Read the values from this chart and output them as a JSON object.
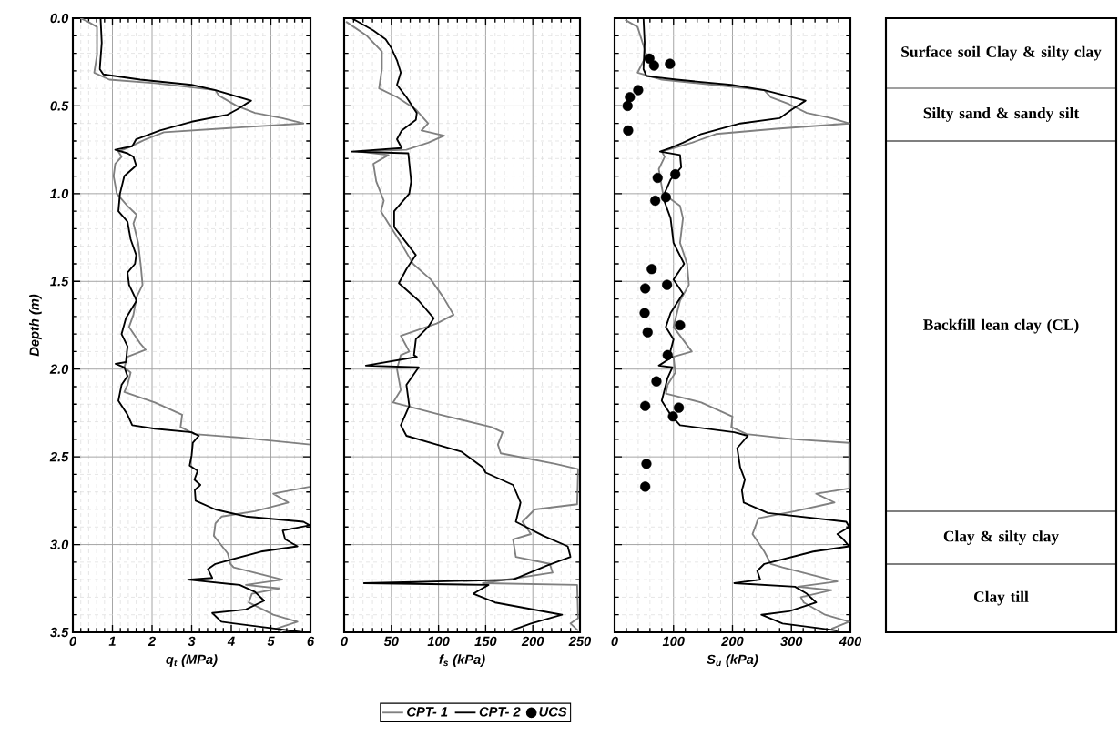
{
  "chart_data": [
    {
      "type": "line",
      "xlabel": "q$_{t}$ (MPa)",
      "ylabel": "Depth (m)",
      "xlim": [
        0,
        6
      ],
      "ylim": [
        3.5,
        0
      ],
      "xticks": [
        0,
        1,
        2,
        3,
        4,
        5,
        6
      ],
      "yticks": [
        {
          "value": 0,
          "label": "0.0"
        },
        {
          "value": 0.5,
          "label": "0.5"
        },
        {
          "value": 1,
          "label": "1.0"
        },
        {
          "value": 1.5,
          "label": "1.5"
        },
        {
          "value": 2,
          "label": "2.0"
        },
        {
          "value": 2.5,
          "label": "2.5"
        },
        {
          "value": 3,
          "label": "3.0"
        },
        {
          "value": 3.5,
          "label": "3.5"
        }
      ],
      "grid": true,
      "series": [
        {
          "color": "#808080",
          "x": [
            0.19,
            0.38,
            0.61,
            0.61,
            0.54,
            0.92,
            2.07,
            3.22,
            3.6,
            3.68,
            3.91,
            4.14,
            4.6,
            5.29,
            5.82,
            4.37,
            2.3,
            1.84,
            1.38,
            1.15,
            1.23,
            1.07,
            1.03,
            1.11,
            1.38,
            1.61,
            1.53,
            1.65,
            1.72,
            1.76,
            1.61,
            1.53,
            1.42,
            1.69,
            1.84,
            1.38,
            1.3,
            1.46,
            1.38,
            1.3,
            2.07,
            2.76,
            2.72,
            3.07,
            4.21,
            6,
            6,
            5.06,
            5.44,
            4.6,
            3.76,
            3.6,
            3.56,
            3.91,
            3.98,
            4.06,
            5.29,
            4.37,
            5.21,
            4.52,
            4.44,
            5.06,
            5.67,
            5.13,
            5.29
          ],
          "values": [
            0,
            0.02,
            0.05,
            0.21,
            0.31,
            0.35,
            0.37,
            0.4,
            0.41,
            0.44,
            0.47,
            0.5,
            0.54,
            0.57,
            0.6,
            0.62,
            0.65,
            0.69,
            0.74,
            0.76,
            0.79,
            0.83,
            0.9,
            1.0,
            1.07,
            1.12,
            1.17,
            1.28,
            1.42,
            1.52,
            1.59,
            1.69,
            1.76,
            1.85,
            1.89,
            1.93,
            1.99,
            2.02,
            2.09,
            2.13,
            2.19,
            2.26,
            2.33,
            2.37,
            2.39,
            2.43,
            2.67,
            2.71,
            2.76,
            2.81,
            2.84,
            2.88,
            2.95,
            3.05,
            3.11,
            3.13,
            3.2,
            3.23,
            3.25,
            3.28,
            3.33,
            3.4,
            3.44,
            3.48,
            3.5
          ]
        },
        {
          "color": "#000000",
          "x": [
            0.7,
            0.73,
            0.68,
            0.77,
            1.7,
            3.0,
            3.6,
            4.5,
            4.15,
            3.9,
            3.0,
            2.2,
            1.6,
            1.5,
            1.07,
            1.38,
            1.53,
            1.6,
            1.3,
            1.19,
            1.15,
            1.38,
            1.46,
            1.6,
            1.57,
            1.38,
            1.42,
            1.61,
            1.34,
            1.23,
            1.38,
            1.34,
            1.08,
            1.3,
            1.38,
            1.23,
            1.15,
            1.38,
            1.5,
            2.07,
            3.0,
            3.18,
            3.03,
            3.0,
            2.95,
            3.15,
            3.07,
            3.22,
            3.08,
            3.1,
            3.6,
            4.37,
            5.82,
            5.98,
            5.3,
            5.36,
            5.67,
            4.75,
            3.6,
            3.41,
            3.52,
            2.91,
            4.21,
            4.6,
            4.83,
            4.37,
            3.52,
            3.75,
            5.13,
            5.82
          ],
          "values": [
            0,
            0.14,
            0.29,
            0.32,
            0.35,
            0.38,
            0.41,
            0.47,
            0.52,
            0.55,
            0.59,
            0.64,
            0.69,
            0.73,
            0.75,
            0.77,
            0.79,
            0.84,
            0.9,
            1.0,
            1.1,
            1.16,
            1.26,
            1.35,
            1.4,
            1.45,
            1.52,
            1.61,
            1.71,
            1.8,
            1.87,
            1.96,
            1.97,
            1.99,
            2.04,
            2.09,
            2.18,
            2.26,
            2.32,
            2.34,
            2.36,
            2.38,
            2.42,
            2.49,
            2.55,
            2.58,
            2.63,
            2.66,
            2.69,
            2.75,
            2.8,
            2.84,
            2.87,
            2.89,
            2.92,
            2.97,
            3.01,
            3.04,
            3.11,
            3.14,
            3.19,
            3.2,
            3.23,
            3.27,
            3.32,
            3.37,
            3.39,
            3.44,
            3.48,
            3.5
          ]
        }
      ]
    },
    {
      "type": "line",
      "xlabel": "f$_{s}$ (kPa)",
      "xlim": [
        0,
        250
      ],
      "ylim": [
        3.5,
        0
      ],
      "xticks": [
        0,
        50,
        100,
        150,
        200,
        250
      ],
      "yticks": [
        0,
        0.5,
        1,
        1.5,
        2,
        2.5,
        3,
        3.5
      ],
      "tick_labels": "x",
      "grid": true,
      "series": [
        {
          "color": "#808080",
          "x": [
            2,
            24,
            40,
            40,
            37,
            56,
            76,
            89,
            82,
            106,
            89,
            66,
            15,
            47,
            31,
            34,
            42,
            39,
            47,
            60,
            73,
            92,
            105,
            116,
            98,
            60,
            69,
            60,
            56,
            60,
            52,
            102,
            156,
            168,
            163,
            166,
            224,
            248,
            247,
            202,
            189,
            198,
            179,
            182,
            218,
            221,
            147,
            247,
            248,
            240,
            248
          ],
          "values": [
            0.02,
            0.1,
            0.19,
            0.29,
            0.4,
            0.45,
            0.52,
            0.6,
            0.64,
            0.67,
            0.71,
            0.75,
            0.76,
            0.78,
            0.83,
            0.93,
            1.04,
            1.1,
            1.17,
            1.28,
            1.4,
            1.49,
            1.59,
            1.69,
            1.74,
            1.81,
            1.9,
            1.92,
            2.0,
            2.12,
            2.19,
            2.26,
            2.33,
            2.36,
            2.43,
            2.48,
            2.54,
            2.57,
            2.77,
            2.8,
            2.87,
            2.94,
            2.97,
            3.07,
            3.11,
            3.16,
            3.22,
            3.23,
            3.42,
            3.45,
            3.49
          ]
        },
        {
          "color": "#000000",
          "x": [
            8,
            31,
            44,
            50,
            56,
            60,
            56,
            66,
            77,
            76,
            61,
            56,
            61,
            8,
            68,
            71,
            69,
            53,
            53,
            66,
            76,
            66,
            58,
            79,
            95,
            89,
            76,
            74,
            77,
            23,
            79,
            66,
            69,
            60,
            66,
            98,
            124,
            147,
            150,
            179,
            187,
            182,
            211,
            237,
            240,
            215,
            179,
            21,
            153,
            137,
            160,
            231,
            198,
            177
          ],
          "values": [
            0,
            0.07,
            0.12,
            0.17,
            0.24,
            0.31,
            0.38,
            0.45,
            0.54,
            0.58,
            0.64,
            0.69,
            0.74,
            0.76,
            0.77,
            0.93,
            1.0,
            1.1,
            1.19,
            1.28,
            1.35,
            1.43,
            1.51,
            1.61,
            1.71,
            1.76,
            1.83,
            1.92,
            1.93,
            1.98,
            1.99,
            2.09,
            2.21,
            2.32,
            2.38,
            2.43,
            2.47,
            2.56,
            2.59,
            2.66,
            2.76,
            2.87,
            2.95,
            3.01,
            3.07,
            3.12,
            3.2,
            3.22,
            3.23,
            3.28,
            3.33,
            3.4,
            3.45,
            3.49
          ]
        }
      ]
    },
    {
      "type": "line",
      "xlabel": "S$_{u}$ (kPa)",
      "xlim": [
        0,
        400
      ],
      "ylim": [
        3.5,
        0
      ],
      "xticks": [
        0,
        100,
        200,
        300,
        400
      ],
      "yticks": [
        0,
        0.5,
        1,
        1.5,
        2,
        2.5,
        3,
        3.5
      ],
      "tick_labels": "x",
      "grid": true,
      "legend": "bottom",
      "series": [
        {
          "name": "CPT- 1",
          "color": "#808080",
          "x": [
            18,
            39,
            54,
            39,
            80,
            198,
            254,
            265,
            296,
            326,
            368,
            398,
            275,
            172,
            131,
            80,
            85,
            75,
            82,
            111,
            116,
            111,
            123,
            126,
            111,
            105,
            100,
            131,
            100,
            103,
            90,
            87,
            147,
            200,
            198,
            224,
            306,
            398,
            398,
            342,
            373,
            306,
            244,
            234,
            254,
            265,
            285,
            378,
            311,
            368,
            316,
            321,
            357,
            398,
            368
          ],
          "values": [
            0.01,
            0.05,
            0.21,
            0.31,
            0.35,
            0.39,
            0.41,
            0.45,
            0.49,
            0.54,
            0.57,
            0.6,
            0.63,
            0.66,
            0.71,
            0.76,
            0.79,
            0.86,
            1.0,
            1.07,
            1.14,
            1.28,
            1.4,
            1.52,
            1.61,
            1.69,
            1.76,
            1.9,
            1.93,
            2.02,
            2.09,
            2.14,
            2.19,
            2.27,
            2.33,
            2.37,
            2.4,
            2.42,
            2.68,
            2.71,
            2.76,
            2.81,
            2.85,
            2.94,
            3.04,
            3.11,
            3.13,
            3.21,
            3.24,
            3.26,
            3.3,
            3.33,
            3.4,
            3.44,
            3.48
          ]
        },
        {
          "name": "CPT- 2",
          "color": "#000000",
          "x": [
            49,
            51,
            49,
            54,
            105,
            198,
            254,
            324,
            301,
            280,
            213,
            147,
            116,
            95,
            77,
            111,
            113,
            95,
            82,
            95,
            100,
            118,
            100,
            116,
            95,
            87,
            100,
            93,
            98,
            75,
            98,
            90,
            80,
            95,
            111,
            203,
            226,
            208,
            213,
            221,
            216,
            219,
            260,
            393,
            398,
            378,
            388,
            398,
            337,
            254,
            242,
            247,
            203,
            306,
            326,
            342,
            296,
            249,
            285,
            378
          ],
          "values": [
            0,
            0.14,
            0.29,
            0.33,
            0.35,
            0.38,
            0.41,
            0.47,
            0.52,
            0.57,
            0.6,
            0.66,
            0.71,
            0.74,
            0.76,
            0.78,
            0.85,
            0.92,
            1.02,
            1.14,
            1.28,
            1.4,
            1.49,
            1.57,
            1.68,
            1.76,
            1.83,
            1.92,
            1.93,
            1.98,
            1.99,
            2.05,
            2.18,
            2.26,
            2.32,
            2.36,
            2.38,
            2.45,
            2.56,
            2.63,
            2.69,
            2.76,
            2.82,
            2.87,
            2.9,
            2.94,
            2.97,
            3.01,
            3.04,
            3.11,
            3.15,
            3.2,
            3.22,
            3.24,
            3.28,
            3.33,
            3.38,
            3.4,
            3.45,
            3.49
          ]
        },
        {
          "name": "UCS",
          "type": "scatter",
          "color": "#000000",
          "x": [
            59,
            67,
            94,
            40,
            26,
            22,
            23,
            73,
            103,
            87,
            69,
            63,
            89,
            52,
            51,
            111,
            56,
            90,
            71,
            52,
            109,
            99,
            54,
            52
          ],
          "values": [
            0.23,
            0.27,
            0.26,
            0.41,
            0.45,
            0.5,
            0.64,
            0.91,
            0.89,
            1.02,
            1.04,
            1.43,
            1.52,
            1.54,
            1.68,
            1.75,
            1.79,
            1.92,
            2.07,
            2.21,
            2.22,
            2.27,
            2.54,
            2.67
          ]
        }
      ]
    },
    {
      "type": "other",
      "annotations": [
        "Surface soil Clay & silty clay",
        "Silty sand & sandy silt",
        "Backfill lean clay (CL)",
        "Clay & silty clay",
        "Clay till"
      ]
    }
  ]
}
